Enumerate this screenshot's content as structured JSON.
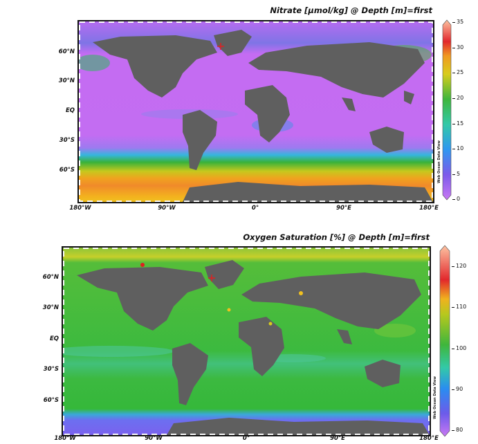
{
  "panels": [
    {
      "id": "nitrate",
      "title": "Nitrate [µmol/kg] @ Depth [m]=first",
      "lat_labels": [
        "60°N",
        "30°N",
        "EQ",
        "30°S",
        "60°S"
      ],
      "lon_labels": [
        "180°W",
        "90°W",
        "0°",
        "90°E",
        "180°E"
      ],
      "colorbar": {
        "min": 0,
        "max": 35,
        "ticks": [
          "35",
          "30",
          "25",
          "20",
          "15",
          "10",
          "5",
          "0"
        ]
      },
      "watermark": "Web Ocean Data View",
      "colors": {
        "ocean_low": "#c46cf2",
        "land": "#5f5f5f",
        "high": "#f07a2a"
      }
    },
    {
      "id": "oxygen",
      "title": "Oxygen Saturation [%] @ Depth [m]=first",
      "lat_labels": [
        "60°N",
        "30°N",
        "EQ",
        "30°S",
        "60°S"
      ],
      "lon_labels": [
        "180°W",
        "90°W",
        "0°",
        "90°E",
        "180°E"
      ],
      "colorbar": {
        "min": 80,
        "max": 125,
        "ticks": [
          "120",
          "110",
          "100",
          "90",
          "80"
        ]
      },
      "watermark": "Web Ocean Data View",
      "colors": {
        "ocean": "#35b83a",
        "land": "#5f5f5f",
        "low": "#8b5cf6"
      }
    }
  ]
}
